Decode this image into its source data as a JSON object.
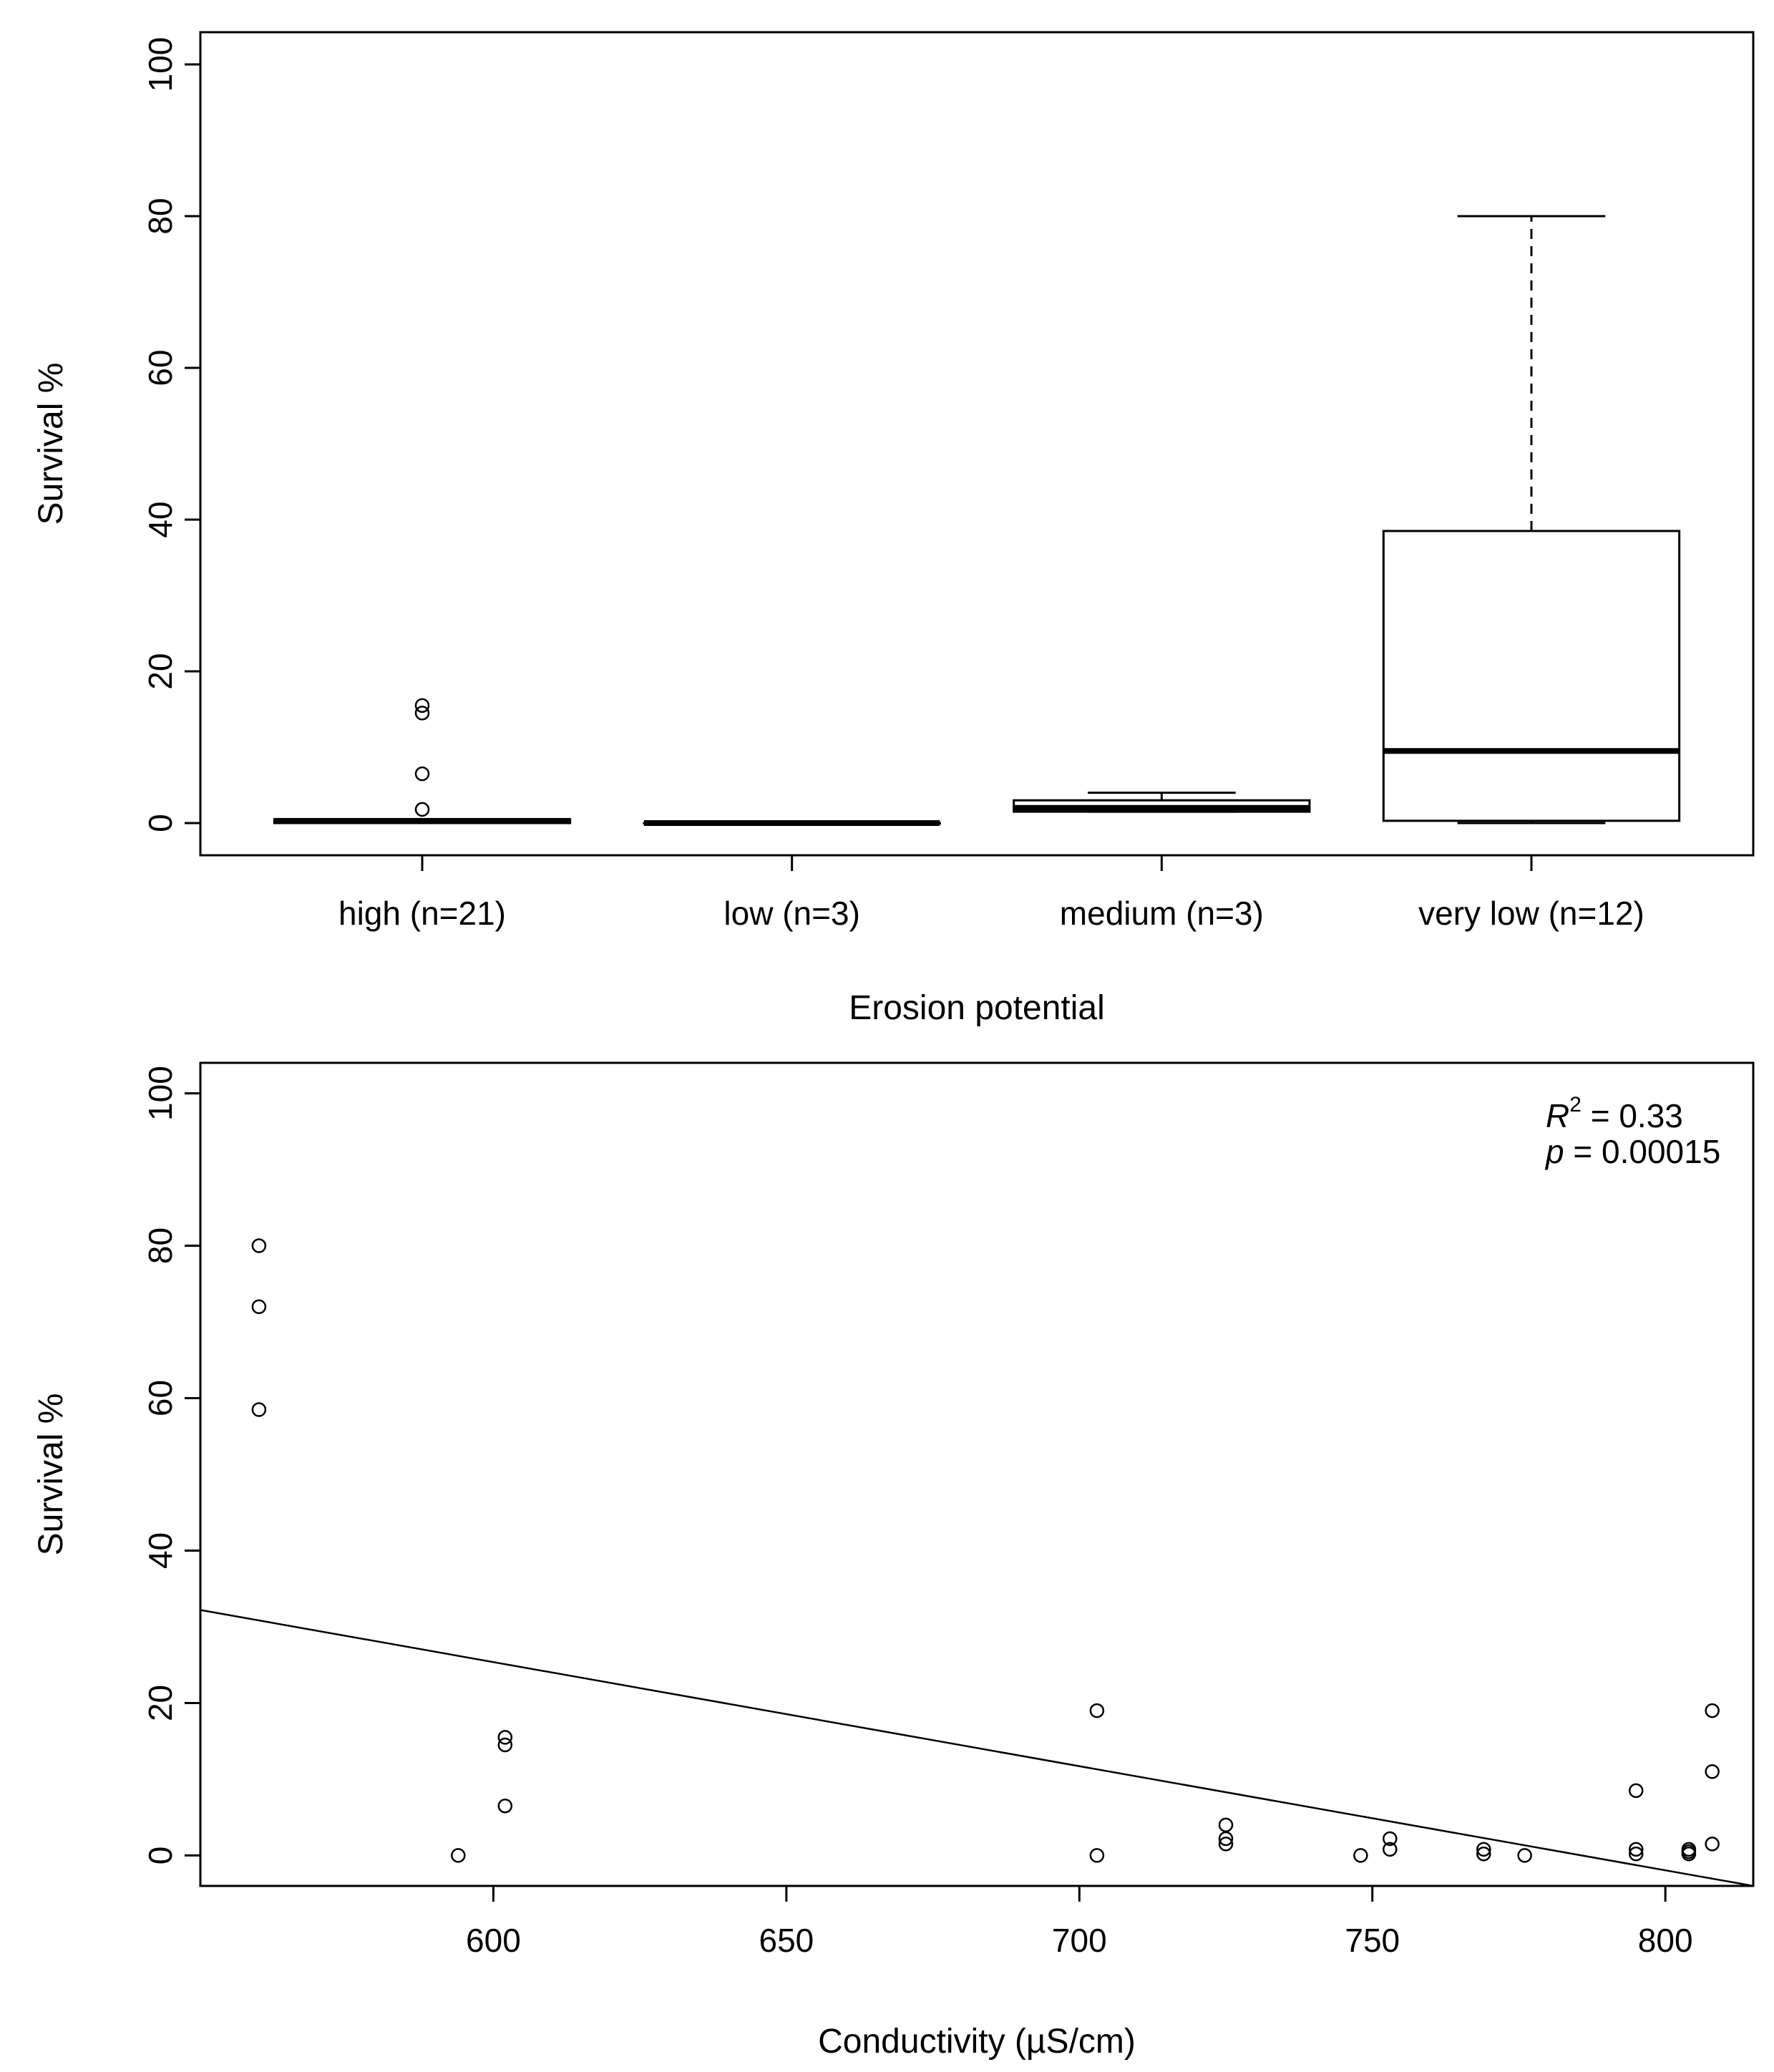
{
  "chart_data": [
    {
      "type": "boxplot",
      "xlabel": "Erosion potential",
      "ylabel": "Survival %",
      "ylim": [
        0,
        100
      ],
      "yticks": [
        0,
        20,
        40,
        60,
        80,
        100
      ],
      "categories": [
        "high (n=21)",
        "low (n=3)",
        "medium (n=3)",
        "very low (n=12)"
      ],
      "boxes": [
        {
          "name": "high",
          "whisker_low": 0,
          "q1": 0,
          "median": 0.3,
          "q3": 0.5,
          "whisker_high": 0.5,
          "outliers": [
            15.5,
            14.5,
            6.5,
            1.8
          ]
        },
        {
          "name": "low",
          "whisker_low": 0,
          "q1": 0,
          "median": 0,
          "q3": 0,
          "whisker_high": 0,
          "outliers": []
        },
        {
          "name": "medium",
          "whisker_low": 1.5,
          "q1": 1.5,
          "median": 2,
          "q3": 3,
          "whisker_high": 4,
          "outliers": []
        },
        {
          "name": "very low",
          "whisker_low": 0,
          "q1": 0.3,
          "median": 9.5,
          "q3": 38.5,
          "whisker_high": 80,
          "outliers": []
        }
      ]
    },
    {
      "type": "scatter",
      "xlabel": "Conductivity (µS/cm)",
      "ylabel": "Survival %",
      "xlim": [
        550,
        815
      ],
      "ylim": [
        -4,
        104
      ],
      "xticks": [
        600,
        650,
        700,
        750,
        800
      ],
      "yticks": [
        0,
        20,
        40,
        60,
        80,
        100
      ],
      "points": [
        [
          560,
          80
        ],
        [
          560,
          72
        ],
        [
          560,
          58.5
        ],
        [
          594,
          0
        ],
        [
          602,
          15.5
        ],
        [
          602,
          14.5
        ],
        [
          602,
          6.5
        ],
        [
          703,
          19
        ],
        [
          703,
          0
        ],
        [
          725,
          4
        ],
        [
          725,
          2.2
        ],
        [
          725,
          1.5
        ],
        [
          748,
          0
        ],
        [
          753,
          2.2
        ],
        [
          753,
          0.8
        ],
        [
          769,
          0.8
        ],
        [
          769,
          0.2
        ],
        [
          776,
          0
        ],
        [
          795,
          8.5
        ],
        [
          795,
          0.8
        ],
        [
          795,
          0.2
        ],
        [
          804,
          0.8
        ],
        [
          804,
          0.5
        ],
        [
          804,
          0.2
        ],
        [
          808,
          19
        ],
        [
          808,
          11
        ],
        [
          808,
          1.5
        ]
      ],
      "fit_line": {
        "x": [
          550,
          815
        ],
        "y": [
          32.2,
          -4
        ]
      },
      "annotation": {
        "r2_label": "R",
        "r2_sup": "2",
        "r2_value": " = 0.33",
        "p_label": "p",
        "p_value": " = 0.00015"
      }
    }
  ]
}
